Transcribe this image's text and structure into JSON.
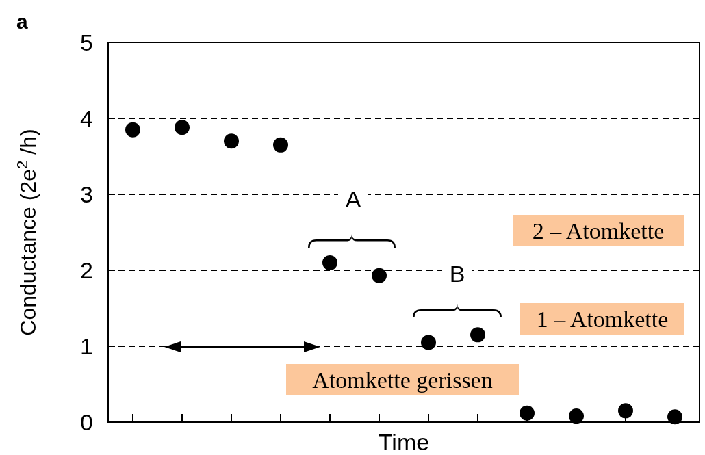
{
  "chart_data": {
    "type": "scatter",
    "title": "a",
    "xlabel": "Time",
    "ylabel": "Conductance (2e$^{2}$ /h)",
    "categories": [
      null,
      null,
      null,
      null,
      null,
      null,
      null,
      null,
      null,
      null,
      null,
      null
    ],
    "series": [
      {
        "color": "#000000",
        "values": [
          3.85,
          3.88,
          3.7,
          3.65,
          2.1,
          1.93,
          1.05,
          1.15,
          0.12,
          0.08,
          0.15,
          0.07
        ]
      }
    ],
    "ylim": [
      0,
      5
    ],
    "yticks": [
      0,
      1,
      2,
      3,
      4,
      5
    ],
    "grid": "y",
    "marker": "circle",
    "annotations": [
      "A",
      "B",
      "2 – Atomkette",
      "1 – Atomkette",
      "Atomkette gerissen"
    ]
  }
}
